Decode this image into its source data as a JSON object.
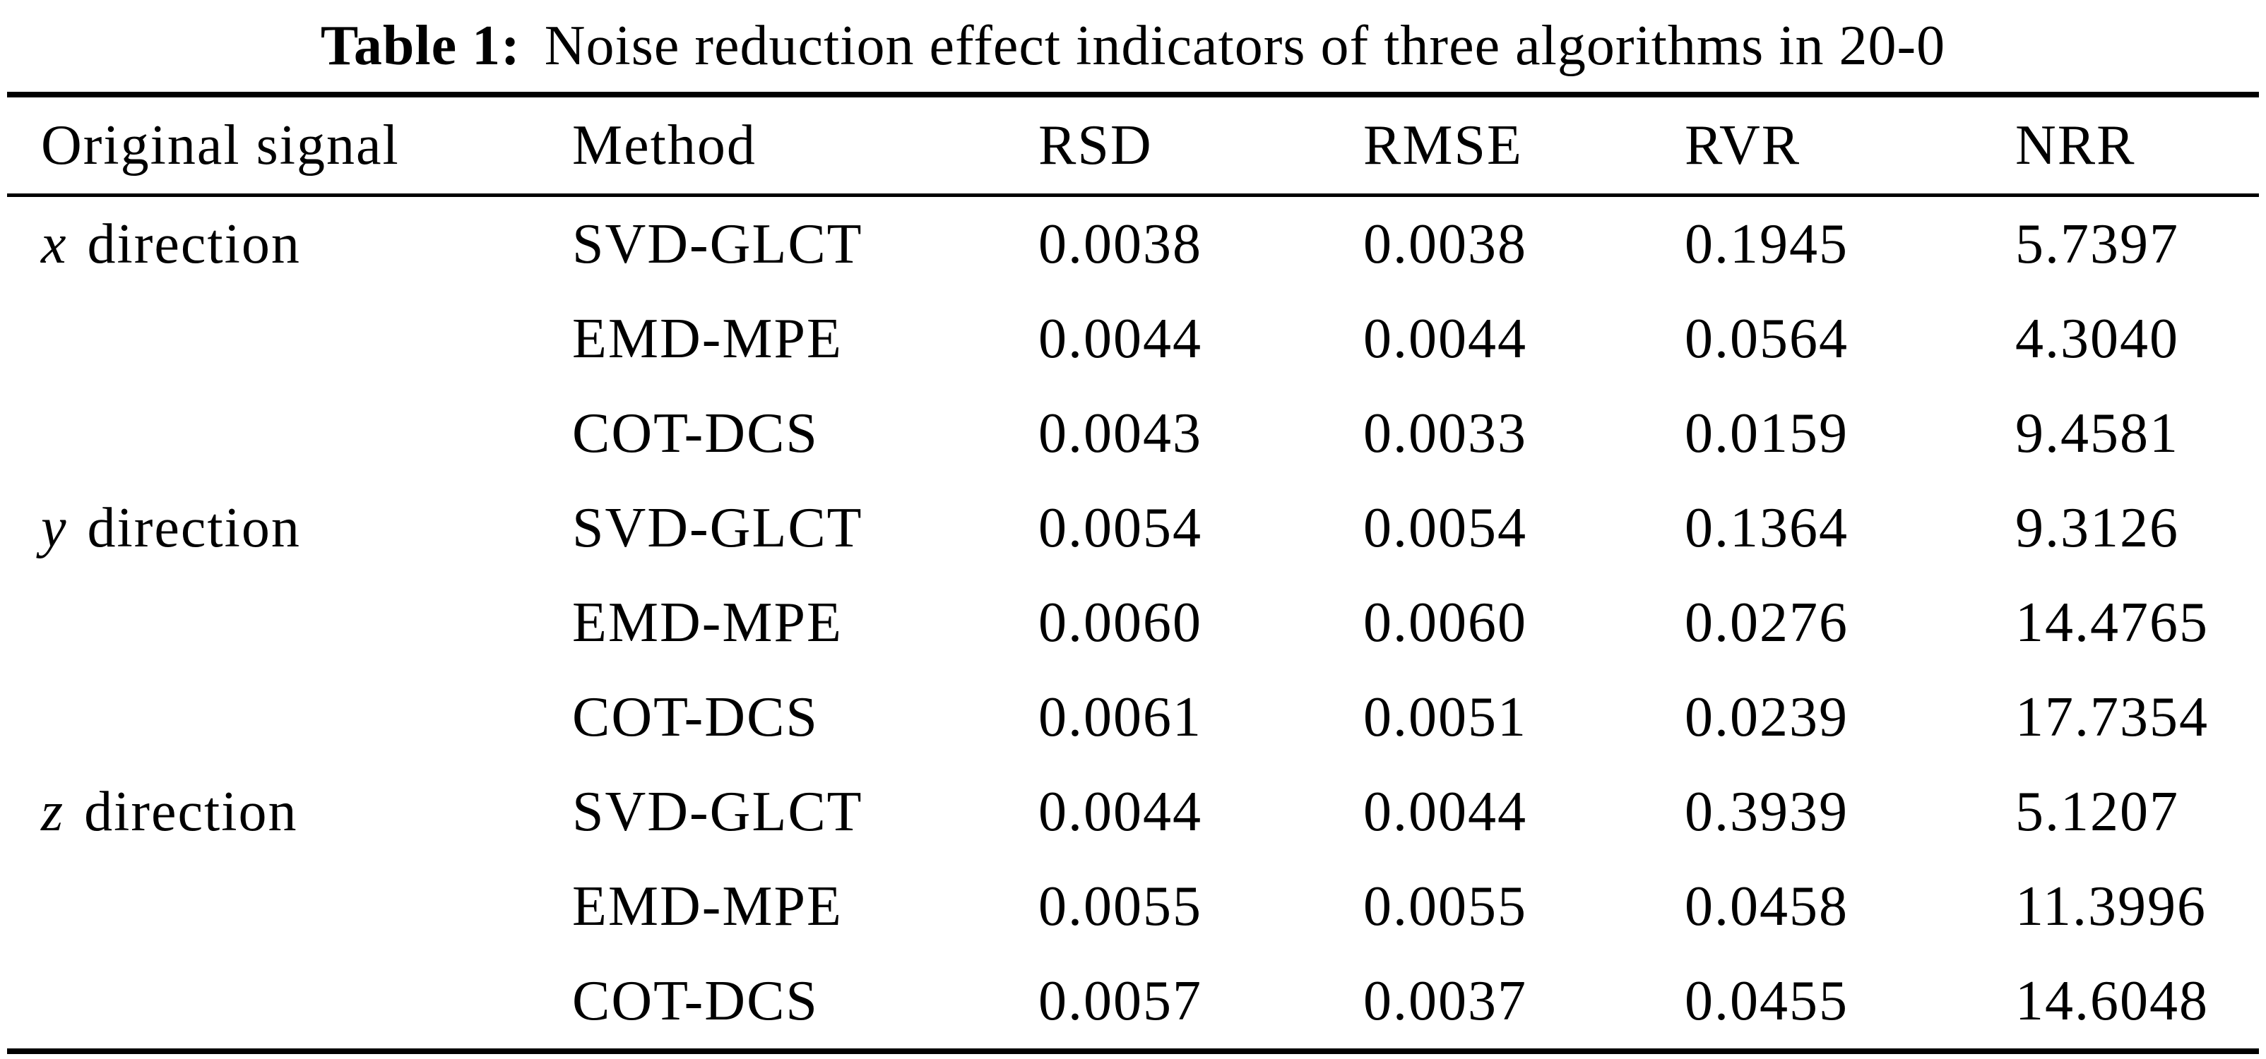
{
  "caption": {
    "label": "Table 1:",
    "text": "Noise reduction effect indicators of three algorithms in 20-0"
  },
  "table": {
    "columns": [
      "Original signal",
      "Method",
      "RSD",
      "RMSE",
      "RVR",
      "NRR"
    ],
    "rows": [
      {
        "signal_italic": "x",
        "signal_rest": " direction",
        "method": "SVD-GLCT",
        "rsd": "0.0038",
        "rmse": "0.0038",
        "rvr": "0.1945",
        "nrr": "5.7397"
      },
      {
        "signal_italic": "",
        "signal_rest": "",
        "method": "EMD-MPE",
        "rsd": "0.0044",
        "rmse": "0.0044",
        "rvr": "0.0564",
        "nrr": "4.3040"
      },
      {
        "signal_italic": "",
        "signal_rest": "",
        "method": "COT-DCS",
        "rsd": "0.0043",
        "rmse": "0.0033",
        "rvr": "0.0159",
        "nrr": "9.4581"
      },
      {
        "signal_italic": "y",
        "signal_rest": " direction",
        "method": "SVD-GLCT",
        "rsd": "0.0054",
        "rmse": "0.0054",
        "rvr": "0.1364",
        "nrr": "9.3126"
      },
      {
        "signal_italic": "",
        "signal_rest": "",
        "method": "EMD-MPE",
        "rsd": "0.0060",
        "rmse": "0.0060",
        "rvr": "0.0276",
        "nrr": "14.4765"
      },
      {
        "signal_italic": "",
        "signal_rest": "",
        "method": "COT-DCS",
        "rsd": "0.0061",
        "rmse": "0.0051",
        "rvr": "0.0239",
        "nrr": "17.7354"
      },
      {
        "signal_italic": "z",
        "signal_rest": " direction",
        "method": "SVD-GLCT",
        "rsd": "0.0044",
        "rmse": "0.0044",
        "rvr": "0.3939",
        "nrr": "5.1207"
      },
      {
        "signal_italic": "",
        "signal_rest": "",
        "method": "EMD-MPE",
        "rsd": "0.0055",
        "rmse": "0.0055",
        "rvr": "0.0458",
        "nrr": "11.3996"
      },
      {
        "signal_italic": "",
        "signal_rest": "",
        "method": "COT-DCS",
        "rsd": "0.0057",
        "rmse": "0.0037",
        "rvr": "0.0455",
        "nrr": "14.6048"
      }
    ]
  },
  "colors": {
    "text": "#000000",
    "background": "#ffffff",
    "rule": "#000000"
  }
}
